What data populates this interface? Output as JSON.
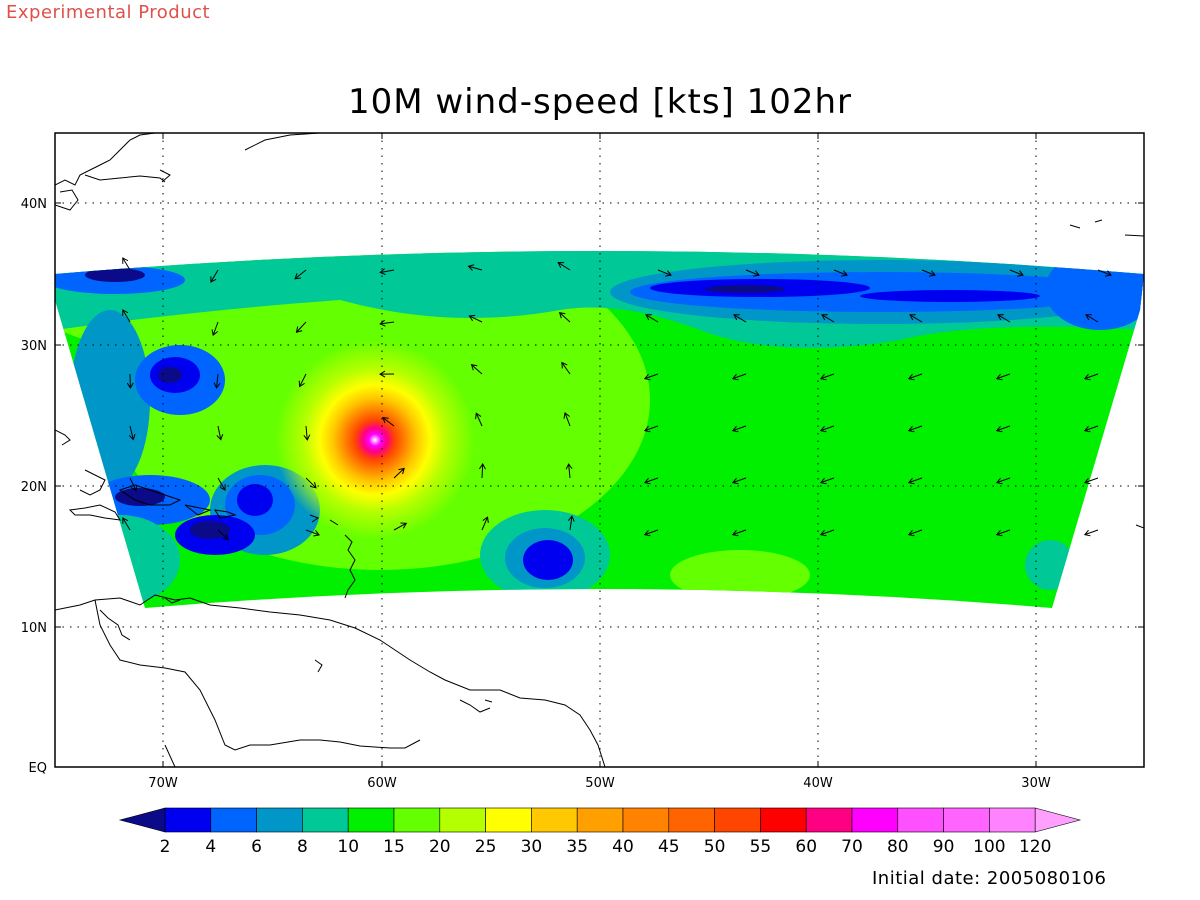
{
  "header": {
    "tag": "Experimental Product",
    "title": "10M wind-speed [kts] 102hr"
  },
  "footer": {
    "initial_date": "Initial date: 2005080106"
  },
  "map": {
    "lon_labels": [
      "70W",
      "60W",
      "50W",
      "40W",
      "30W"
    ],
    "lat_labels": [
      "40N",
      "30N",
      "20N",
      "10N",
      "EQ"
    ],
    "field": "10m wind speed",
    "units": "kts",
    "forecast_hour": "102hr",
    "storm_center": {
      "lon": -60.5,
      "lat": 23.0
    }
  },
  "colorbar": {
    "labels": [
      "2",
      "4",
      "6",
      "8",
      "10",
      "15",
      "20",
      "25",
      "30",
      "35",
      "40",
      "45",
      "50",
      "55",
      "60",
      "70",
      "80",
      "90",
      "100",
      "120"
    ],
    "colors": [
      "#0b0b8a",
      "#0000f0",
      "#0064ff",
      "#0096c8",
      "#00c896",
      "#00f000",
      "#64ff00",
      "#b4ff00",
      "#ffff00",
      "#ffc800",
      "#ffa000",
      "#ff8200",
      "#ff6400",
      "#ff4600",
      "#ff0000",
      "#ff0082",
      "#ff00ff",
      "#ff50ff",
      "#ff64ff",
      "#ff82ff",
      "#ffa0ff"
    ]
  }
}
